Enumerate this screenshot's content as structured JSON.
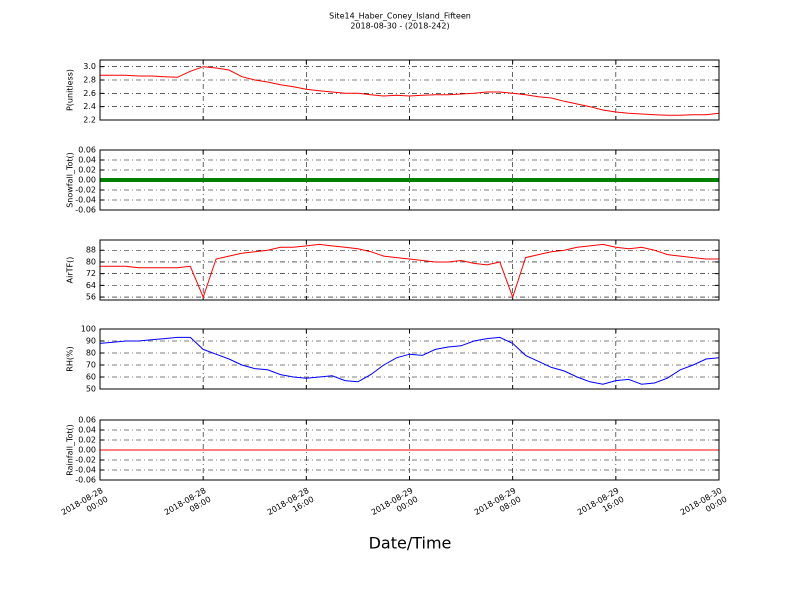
{
  "chart_data": [
    {
      "type": "line",
      "title": "Site14_Haber_Coney_Island_Fifteen",
      "subtitle": "2018-08-30 - (2018-242)",
      "ylabel": "P(unitless)",
      "color": "#ff0000",
      "grid": true,
      "ylim": [
        2.2,
        3.1
      ],
      "yticks": [
        2.2,
        2.4,
        2.6,
        2.8,
        {
          "value": 3,
          "label": "3.0"
        }
      ],
      "x": [
        "2018-08-28 00:00",
        "2018-08-28 01:00",
        "2018-08-28 02:00",
        "2018-08-28 03:00",
        "2018-08-28 04:00",
        "2018-08-28 05:00",
        "2018-08-28 06:00",
        "2018-08-28 07:00",
        "2018-08-28 08:00",
        "2018-08-28 09:00",
        "2018-08-28 10:00",
        "2018-08-28 11:00",
        "2018-08-28 12:00",
        "2018-08-28 13:00",
        "2018-08-28 14:00",
        "2018-08-28 15:00",
        "2018-08-28 16:00",
        "2018-08-28 17:00",
        "2018-08-28 18:00",
        "2018-08-28 19:00",
        "2018-08-28 20:00",
        "2018-08-28 21:00",
        "2018-08-28 22:00",
        "2018-08-28 23:00",
        "2018-08-29 00:00",
        "2018-08-29 01:00",
        "2018-08-29 02:00",
        "2018-08-29 03:00",
        "2018-08-29 04:00",
        "2018-08-29 05:00",
        "2018-08-29 06:00",
        "2018-08-29 07:00",
        "2018-08-29 08:00",
        "2018-08-29 09:00",
        "2018-08-29 10:00",
        "2018-08-29 11:00",
        "2018-08-29 12:00",
        "2018-08-29 13:00",
        "2018-08-29 14:00",
        "2018-08-29 15:00",
        "2018-08-29 16:00",
        "2018-08-29 17:00",
        "2018-08-29 18:00",
        "2018-08-29 19:00",
        "2018-08-29 20:00",
        "2018-08-29 21:00",
        "2018-08-29 22:00",
        "2018-08-29 23:00",
        "2018-08-30 00:00"
      ],
      "values": [
        2.87,
        2.87,
        2.87,
        2.86,
        2.86,
        2.85,
        2.84,
        2.93,
        3.0,
        2.98,
        2.95,
        2.85,
        2.8,
        2.77,
        2.73,
        2.7,
        2.66,
        2.64,
        2.62,
        2.6,
        2.6,
        2.58,
        2.56,
        2.57,
        2.56,
        2.57,
        2.58,
        2.58,
        2.59,
        2.6,
        2.62,
        2.62,
        2.6,
        2.58,
        2.55,
        2.53,
        2.48,
        2.44,
        2.4,
        2.35,
        2.32,
        2.3,
        2.29,
        2.28,
        2.27,
        2.27,
        2.28,
        2.28,
        2.3
      ]
    },
    {
      "type": "line",
      "ylabel": "Snowfall_Tot()",
      "color": "#008000",
      "grid": true,
      "ylim": [
        -0.06,
        0.06
      ],
      "yticks": [
        -0.06,
        -0.04,
        -0.02,
        {
          "value": 0,
          "label": "0.00"
        },
        0.02,
        0.04,
        0.06
      ],
      "x": [
        "2018-08-28 00:00",
        "2018-08-28 01:00",
        "2018-08-28 02:00",
        "2018-08-28 03:00",
        "2018-08-28 04:00",
        "2018-08-28 05:00",
        "2018-08-28 06:00",
        "2018-08-28 07:00",
        "2018-08-28 08:00",
        "2018-08-28 09:00",
        "2018-08-28 10:00",
        "2018-08-28 11:00",
        "2018-08-28 12:00",
        "2018-08-28 13:00",
        "2018-08-28 14:00",
        "2018-08-28 15:00",
        "2018-08-28 16:00",
        "2018-08-28 17:00",
        "2018-08-28 18:00",
        "2018-08-28 19:00",
        "2018-08-28 20:00",
        "2018-08-28 21:00",
        "2018-08-28 22:00",
        "2018-08-28 23:00",
        "2018-08-29 00:00",
        "2018-08-29 01:00",
        "2018-08-29 02:00",
        "2018-08-29 03:00",
        "2018-08-29 04:00",
        "2018-08-29 05:00",
        "2018-08-29 06:00",
        "2018-08-29 07:00",
        "2018-08-29 08:00",
        "2018-08-29 09:00",
        "2018-08-29 10:00",
        "2018-08-29 11:00",
        "2018-08-29 12:00",
        "2018-08-29 13:00",
        "2018-08-29 14:00",
        "2018-08-29 15:00",
        "2018-08-29 16:00",
        "2018-08-29 17:00",
        "2018-08-29 18:00",
        "2018-08-29 19:00",
        "2018-08-29 20:00",
        "2018-08-29 21:00",
        "2018-08-29 22:00",
        "2018-08-29 23:00",
        "2018-08-30 00:00"
      ],
      "values": [
        0,
        0,
        0,
        0,
        0,
        0,
        0,
        0,
        0,
        0,
        0,
        0,
        0,
        0,
        0,
        0,
        0,
        0,
        0,
        0,
        0,
        0,
        0,
        0,
        0,
        0,
        0,
        0,
        0,
        0,
        0,
        0,
        0,
        0,
        0,
        0,
        0,
        0,
        0,
        0,
        0,
        0,
        0,
        0,
        0,
        0,
        0,
        0,
        0
      ]
    },
    {
      "type": "line",
      "ylabel": "AirTF()",
      "color": "#ff0000",
      "grid": true,
      "ylim": [
        54,
        95
      ],
      "yticks": [
        56,
        64,
        72,
        80,
        88
      ],
      "x": [
        "2018-08-28 00:00",
        "2018-08-28 01:00",
        "2018-08-28 02:00",
        "2018-08-28 03:00",
        "2018-08-28 04:00",
        "2018-08-28 05:00",
        "2018-08-28 06:00",
        "2018-08-28 07:00",
        "2018-08-28 08:00",
        "2018-08-28 09:00",
        "2018-08-28 10:00",
        "2018-08-28 11:00",
        "2018-08-28 12:00",
        "2018-08-28 13:00",
        "2018-08-28 14:00",
        "2018-08-28 15:00",
        "2018-08-28 16:00",
        "2018-08-28 17:00",
        "2018-08-28 18:00",
        "2018-08-28 19:00",
        "2018-08-28 20:00",
        "2018-08-28 21:00",
        "2018-08-28 22:00",
        "2018-08-28 23:00",
        "2018-08-29 00:00",
        "2018-08-29 01:00",
        "2018-08-29 02:00",
        "2018-08-29 03:00",
        "2018-08-29 04:00",
        "2018-08-29 05:00",
        "2018-08-29 06:00",
        "2018-08-29 07:00",
        "2018-08-29 08:00",
        "2018-08-29 09:00",
        "2018-08-29 10:00",
        "2018-08-29 11:00",
        "2018-08-29 12:00",
        "2018-08-29 13:00",
        "2018-08-29 14:00",
        "2018-08-29 15:00",
        "2018-08-29 16:00",
        "2018-08-29 17:00",
        "2018-08-29 18:00",
        "2018-08-29 19:00",
        "2018-08-29 20:00",
        "2018-08-29 21:00",
        "2018-08-29 22:00",
        "2018-08-29 23:00",
        "2018-08-30 00:00"
      ],
      "values": [
        77,
        77,
        77,
        76,
        76,
        76,
        76,
        77,
        56,
        82,
        84,
        86,
        87,
        88,
        90,
        90,
        91,
        92,
        91,
        90,
        89,
        87,
        84,
        83,
        82,
        81,
        80,
        80,
        81,
        79,
        78,
        80,
        56,
        83,
        85,
        87,
        88,
        90,
        91,
        92,
        90,
        89,
        90,
        88,
        85,
        84,
        83,
        82,
        82
      ]
    },
    {
      "type": "line",
      "ylabel": "RH(%)",
      "color": "#0000ff",
      "grid": true,
      "ylim": [
        50,
        100
      ],
      "yticks": [
        50,
        60,
        70,
        80,
        90,
        100
      ],
      "x": [
        "2018-08-28 00:00",
        "2018-08-28 01:00",
        "2018-08-28 02:00",
        "2018-08-28 03:00",
        "2018-08-28 04:00",
        "2018-08-28 05:00",
        "2018-08-28 06:00",
        "2018-08-28 07:00",
        "2018-08-28 08:00",
        "2018-08-28 09:00",
        "2018-08-28 10:00",
        "2018-08-28 11:00",
        "2018-08-28 12:00",
        "2018-08-28 13:00",
        "2018-08-28 14:00",
        "2018-08-28 15:00",
        "2018-08-28 16:00",
        "2018-08-28 17:00",
        "2018-08-28 18:00",
        "2018-08-28 19:00",
        "2018-08-28 20:00",
        "2018-08-28 21:00",
        "2018-08-28 22:00",
        "2018-08-28 23:00",
        "2018-08-29 00:00",
        "2018-08-29 01:00",
        "2018-08-29 02:00",
        "2018-08-29 03:00",
        "2018-08-29 04:00",
        "2018-08-29 05:00",
        "2018-08-29 06:00",
        "2018-08-29 07:00",
        "2018-08-29 08:00",
        "2018-08-29 09:00",
        "2018-08-29 10:00",
        "2018-08-29 11:00",
        "2018-08-29 12:00",
        "2018-08-29 13:00",
        "2018-08-29 14:00",
        "2018-08-29 15:00",
        "2018-08-29 16:00",
        "2018-08-29 17:00",
        "2018-08-29 18:00",
        "2018-08-29 19:00",
        "2018-08-29 20:00",
        "2018-08-29 21:00",
        "2018-08-29 22:00",
        "2018-08-29 23:00",
        "2018-08-30 00:00"
      ],
      "values": [
        88,
        89,
        90,
        90,
        91,
        92,
        93,
        93,
        83,
        79,
        75,
        70,
        67,
        66,
        62,
        60,
        59,
        60,
        61,
        57,
        56,
        62,
        70,
        76,
        79,
        78,
        83,
        85,
        86,
        90,
        92,
        93,
        88,
        78,
        73,
        68,
        65,
        60,
        56,
        54,
        57,
        58,
        54,
        55,
        59,
        66,
        70,
        75,
        76
      ]
    },
    {
      "type": "line",
      "ylabel": "Rainfall_Tot()",
      "xlabel": "Date/Time",
      "color": "#ff0000",
      "grid": true,
      "ylim": [
        -0.06,
        0.06
      ],
      "yticks": [
        -0.06,
        -0.04,
        -0.02,
        {
          "value": 0,
          "label": "0.00"
        },
        0.02,
        0.04,
        0.06
      ],
      "xlim": [
        "2018-08-28 00:00",
        "2018-08-30 00:00"
      ],
      "xticks": [
        "2018-08-28 00:00",
        "2018-08-28 08:00",
        "2018-08-28 16:00",
        "2018-08-29 00:00",
        "2018-08-29 08:00",
        "2018-08-29 16:00",
        "2018-08-30 00:00"
      ],
      "x": [
        "2018-08-28 00:00",
        "2018-08-28 01:00",
        "2018-08-28 02:00",
        "2018-08-28 03:00",
        "2018-08-28 04:00",
        "2018-08-28 05:00",
        "2018-08-28 06:00",
        "2018-08-28 07:00",
        "2018-08-28 08:00",
        "2018-08-28 09:00",
        "2018-08-28 10:00",
        "2018-08-28 11:00",
        "2018-08-28 12:00",
        "2018-08-28 13:00",
        "2018-08-28 14:00",
        "2018-08-28 15:00",
        "2018-08-28 16:00",
        "2018-08-28 17:00",
        "2018-08-28 18:00",
        "2018-08-28 19:00",
        "2018-08-28 20:00",
        "2018-08-28 21:00",
        "2018-08-28 22:00",
        "2018-08-28 23:00",
        "2018-08-29 00:00",
        "2018-08-29 01:00",
        "2018-08-29 02:00",
        "2018-08-29 03:00",
        "2018-08-29 04:00",
        "2018-08-29 05:00",
        "2018-08-29 06:00",
        "2018-08-29 07:00",
        "2018-08-29 08:00",
        "2018-08-29 09:00",
        "2018-08-29 10:00",
        "2018-08-29 11:00",
        "2018-08-29 12:00",
        "2018-08-29 13:00",
        "2018-08-29 14:00",
        "2018-08-29 15:00",
        "2018-08-29 16:00",
        "2018-08-29 17:00",
        "2018-08-29 18:00",
        "2018-08-29 19:00",
        "2018-08-29 20:00",
        "2018-08-29 21:00",
        "2018-08-29 22:00",
        "2018-08-29 23:00",
        "2018-08-30 00:00"
      ],
      "values": [
        0,
        0,
        0,
        0,
        0,
        0,
        0,
        0,
        0,
        0,
        0,
        0,
        0,
        0,
        0,
        0,
        0,
        0,
        0,
        0,
        0,
        0,
        0,
        0,
        0,
        0,
        0,
        0,
        0,
        0,
        0,
        0,
        0,
        0,
        0,
        0,
        0,
        0,
        0,
        0,
        0,
        0,
        0,
        0,
        0,
        0,
        0,
        0,
        0
      ]
    }
  ]
}
